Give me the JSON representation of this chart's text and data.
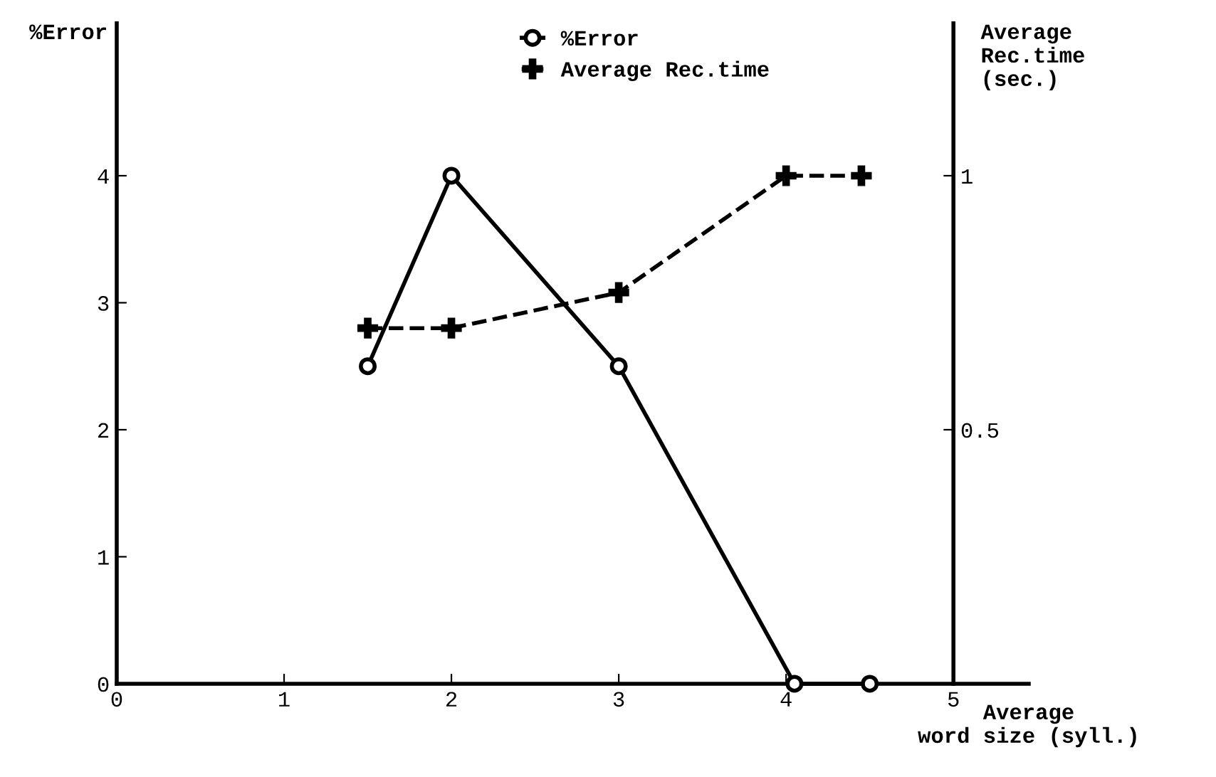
{
  "chart_data": {
    "type": "line",
    "xlabel": "Average\nword size (syll.)",
    "ylabel": "%Error",
    "y2label": "Average\nRec.time\n(sec.)",
    "xlim": [
      0,
      5.45
    ],
    "xticks": [
      0,
      1,
      2,
      3,
      4,
      5
    ],
    "ylim": [
      0,
      5.2
    ],
    "yticks": [
      0,
      1,
      2,
      3,
      4
    ],
    "y2lim": [
      0,
      1.3
    ],
    "y2ticks": [
      0.5,
      1
    ],
    "series": [
      {
        "name": "%Error",
        "color": "#000000",
        "marker": "circle",
        "line_style": "solid",
        "x": [
          1.5,
          2,
          3,
          4.05,
          4.5
        ],
        "values": [
          2.5,
          4,
          2.5,
          0,
          0
        ]
      },
      {
        "name": "Average Rec.time",
        "color": "#000000",
        "marker": "cross",
        "line_style": "dashed",
        "axis": "y2",
        "x": [
          1.5,
          2,
          3,
          4,
          4.45
        ],
        "values": [
          0.7,
          0.7,
          0.77,
          1.0,
          1.0
        ]
      }
    ],
    "legend": "top",
    "grid": false
  }
}
